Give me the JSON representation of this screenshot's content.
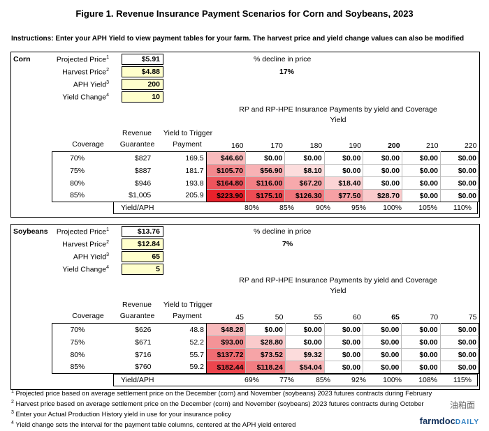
{
  "title": "Figure 1. Revenue Insurance Payment Scenarios for Corn and Soybeans, 2023",
  "instructions": "Instructions: Enter your APH Yield to view payment tables for your farm.  The harvest price and yield change values can also be modified",
  "labels": {
    "projected_price": "Projected Price",
    "harvest_price": "Harvest Price",
    "aph_yield": "APH Yield",
    "yield_change": "Yield Change",
    "pct_decline": "% decline in price",
    "payments_title": "RP and RP-HPE Insurance Payments by yield and Coverage",
    "payments_sub": "Yield",
    "coverage": "Coverage",
    "revenue": "Revenue",
    "guarantee": "Guarantee",
    "yield_to_trigger": "Yield to Trigger",
    "payment": "Payment",
    "yield_aph": "Yield/APH",
    "sup1": "1",
    "sup2": "2",
    "sup3": "3",
    "sup4": "4"
  },
  "corn": {
    "crop": "Corn",
    "projected_price": "$5.91",
    "harvest_price": "$4.88",
    "aph_yield": "200",
    "yield_change": "10",
    "pct_decline": "17%",
    "yields": [
      "160",
      "170",
      "180",
      "190",
      "200",
      "210",
      "220"
    ],
    "rows": [
      {
        "coverage": "70%",
        "guarantee": "$827",
        "trigger": "169.5",
        "payments": [
          "$46.60",
          "$0.00",
          "$0.00",
          "$0.00",
          "$0.00",
          "$0.00",
          "$0.00"
        ]
      },
      {
        "coverage": "75%",
        "guarantee": "$887",
        "trigger": "181.7",
        "payments": [
          "$105.70",
          "$56.90",
          "$8.10",
          "$0.00",
          "$0.00",
          "$0.00",
          "$0.00"
        ]
      },
      {
        "coverage": "80%",
        "guarantee": "$946",
        "trigger": "193.8",
        "payments": [
          "$164.80",
          "$116.00",
          "$67.20",
          "$18.40",
          "$0.00",
          "$0.00",
          "$0.00"
        ]
      },
      {
        "coverage": "85%",
        "guarantee": "$1,005",
        "trigger": "205.9",
        "payments": [
          "$223.90",
          "$175.10",
          "$126.30",
          "$77.50",
          "$28.70",
          "$0.00",
          "$0.00"
        ]
      }
    ],
    "yield_aph": [
      "80%",
      "85%",
      "90%",
      "95%",
      "100%",
      "105%",
      "110%"
    ]
  },
  "soy": {
    "crop": "Soybeans",
    "projected_price": "$13.76",
    "harvest_price": "$12.84",
    "aph_yield": "65",
    "yield_change": "5",
    "pct_decline": "7%",
    "yields": [
      "45",
      "50",
      "55",
      "60",
      "65",
      "70",
      "75"
    ],
    "rows": [
      {
        "coverage": "70%",
        "guarantee": "$626",
        "trigger": "48.8",
        "payments": [
          "$48.28",
          "$0.00",
          "$0.00",
          "$0.00",
          "$0.00",
          "$0.00",
          "$0.00"
        ]
      },
      {
        "coverage": "75%",
        "guarantee": "$671",
        "trigger": "52.2",
        "payments": [
          "$93.00",
          "$28.80",
          "$0.00",
          "$0.00",
          "$0.00",
          "$0.00",
          "$0.00"
        ]
      },
      {
        "coverage": "80%",
        "guarantee": "$716",
        "trigger": "55.7",
        "payments": [
          "$137.72",
          "$73.52",
          "$9.32",
          "$0.00",
          "$0.00",
          "$0.00",
          "$0.00"
        ]
      },
      {
        "coverage": "85%",
        "guarantee": "$760",
        "trigger": "59.2",
        "payments": [
          "$182.44",
          "$118.24",
          "$54.04",
          "$0.00",
          "$0.00",
          "$0.00",
          "$0.00"
        ]
      }
    ],
    "yield_aph": [
      "69%",
      "77%",
      "85%",
      "92%",
      "100%",
      "108%",
      "115%"
    ]
  },
  "footnotes": [
    "Projected price based on average settlement price on the December (corn) and November (soybeans) 2023 futures contracts during February",
    "Harvest price based on average settlement price on the December (corn) and November (soybeans) 2023 futures contracts during October",
    "Enter your Actual Production History yield in use for your insurance policy",
    "Yield change sets the interval for the payment table columns, centered at the APH yield entered"
  ],
  "footnote_nums": [
    "1",
    "2",
    "3",
    "4"
  ],
  "brand": {
    "name": "farmdoc",
    "suffix": "DAILY",
    "watermark": "油粕面"
  },
  "colors": {
    "heat_max": "#e8202a",
    "heat_min": "#fde4e4",
    "input_bg": "#ffffcc"
  }
}
